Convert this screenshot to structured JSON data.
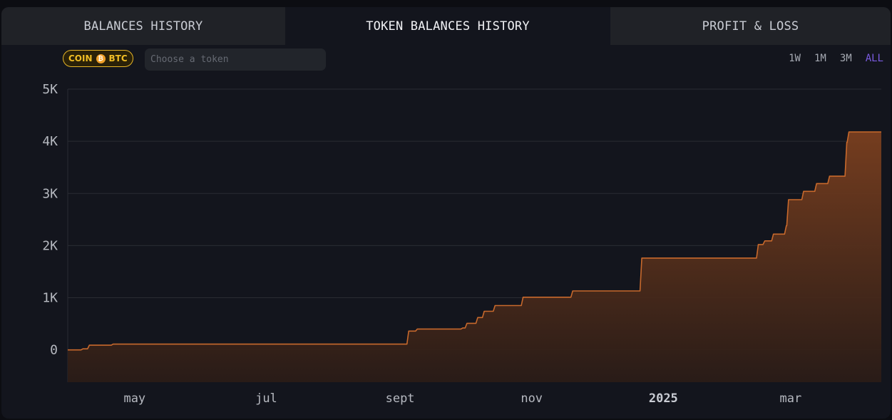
{
  "tabs": [
    {
      "label": "BALANCES HISTORY",
      "active": false
    },
    {
      "label": "TOKEN BALANCES HISTORY",
      "active": true
    },
    {
      "label": "PROFIT & LOSS",
      "active": false
    }
  ],
  "filter": {
    "coin_label": "COIN",
    "coin_symbol": "BTC",
    "coin_icon": "bitcoin-icon",
    "token_placeholder": "Choose a token",
    "token_value": ""
  },
  "ranges": [
    {
      "label": "1W",
      "active": false
    },
    {
      "label": "1M",
      "active": false
    },
    {
      "label": "3M",
      "active": false
    },
    {
      "label": "ALL",
      "active": true
    }
  ],
  "colors": {
    "line": "#c8692c",
    "fill_top": "#7a3f1f",
    "fill_bottom": "#2a1c17",
    "active_range": "#7a5be0",
    "coin_pill": "#f0bd25"
  },
  "chart_data": {
    "type": "area",
    "step": true,
    "grid": true,
    "ylim": [
      -620,
      5000
    ],
    "yticks": [
      0,
      1000,
      2000,
      3000,
      4000,
      5000
    ],
    "ytick_labels": [
      "0",
      "1K",
      "2K",
      "3K",
      "4K",
      "5K"
    ],
    "xlim": [
      "2024-03-31",
      "2025-04-12"
    ],
    "xticks": [
      {
        "label": "may",
        "date": "2024-05-01",
        "bold": false
      },
      {
        "label": "jul",
        "date": "2024-07-01",
        "bold": false
      },
      {
        "label": "sept",
        "date": "2024-09-01",
        "bold": false
      },
      {
        "label": "nov",
        "date": "2024-11-01",
        "bold": false
      },
      {
        "label": "2025",
        "date": "2025-01-01",
        "bold": true
      },
      {
        "label": "mar",
        "date": "2025-03-01",
        "bold": false
      }
    ],
    "series": [
      {
        "points": [
          [
            "2024-03-31",
            0
          ],
          [
            "2024-04-07",
            20
          ],
          [
            "2024-04-10",
            90
          ],
          [
            "2024-04-21",
            110
          ],
          [
            "2024-09-05",
            360
          ],
          [
            "2024-09-09",
            400
          ],
          [
            "2024-09-30",
            420
          ],
          [
            "2024-10-02",
            510
          ],
          [
            "2024-10-07",
            620
          ],
          [
            "2024-10-10",
            740
          ],
          [
            "2024-10-15",
            850
          ],
          [
            "2024-10-28",
            1010
          ],
          [
            "2024-11-20",
            1130
          ],
          [
            "2024-12-22",
            1760
          ],
          [
            "2025-02-14",
            2020
          ],
          [
            "2025-02-17",
            2090
          ],
          [
            "2025-02-21",
            2220
          ],
          [
            "2025-02-27",
            2380
          ],
          [
            "2025-02-28",
            2880
          ],
          [
            "2025-03-07",
            3040
          ],
          [
            "2025-03-13",
            3190
          ],
          [
            "2025-03-19",
            3330
          ],
          [
            "2025-03-27",
            3980
          ],
          [
            "2025-03-28",
            4180
          ],
          [
            "2025-04-12",
            4180
          ]
        ]
      }
    ]
  }
}
